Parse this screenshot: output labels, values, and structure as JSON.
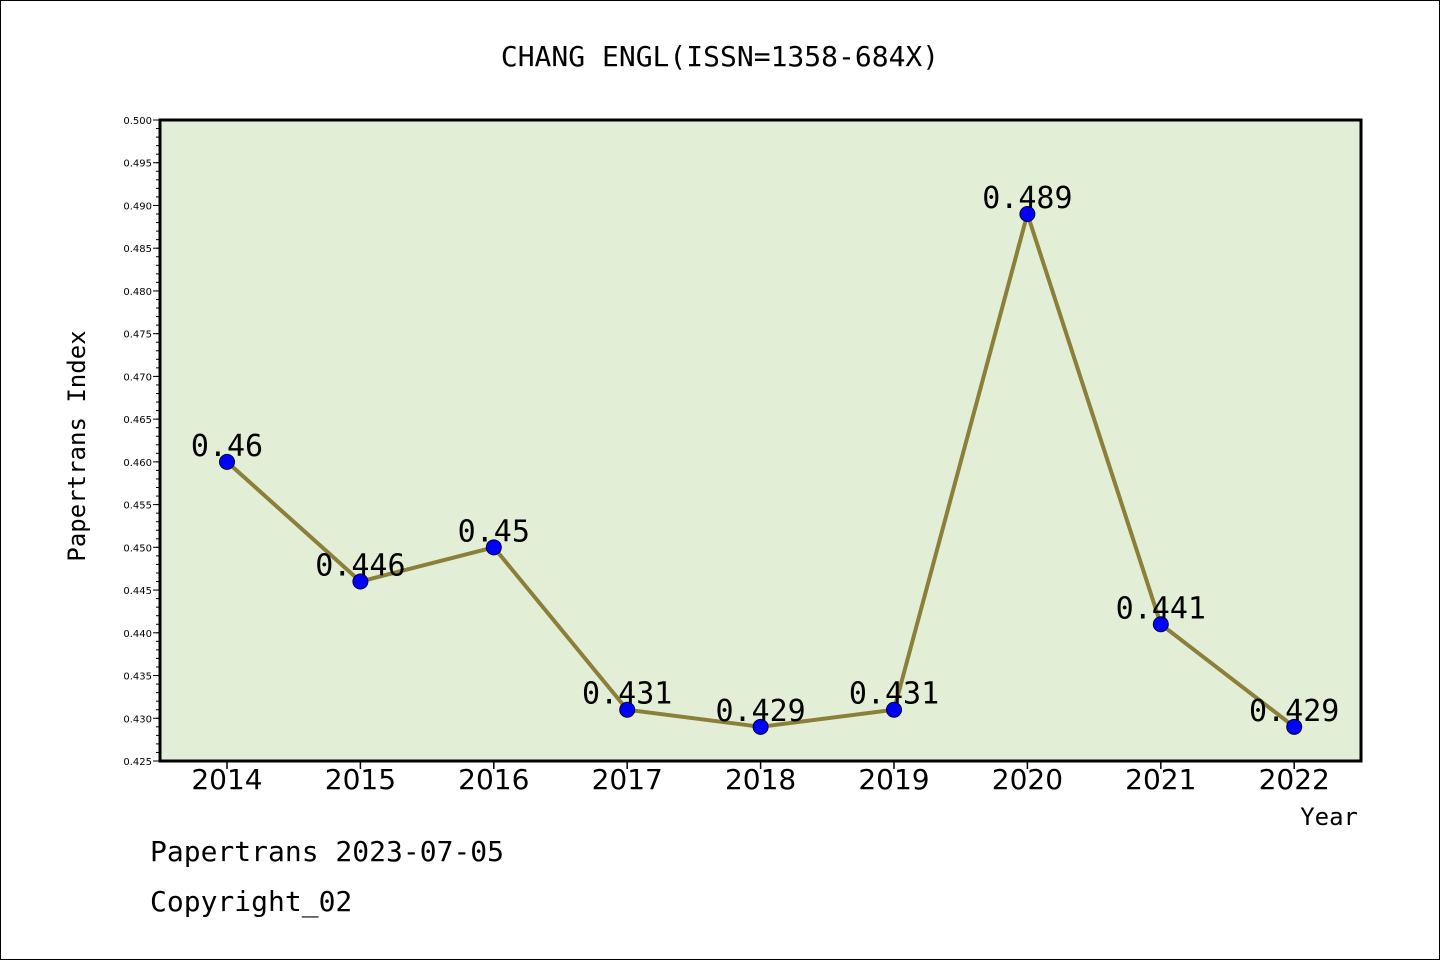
{
  "colors": {
    "plot_background": "#e2efd6",
    "line": "#8c7f3a",
    "marker_fill": "#0000ff",
    "marker_stroke": "#000033",
    "axis": "#000000"
  },
  "chart_data": {
    "type": "line",
    "title": "CHANG ENGL(ISSN=1358-684X)",
    "xlabel": "Year",
    "ylabel": "Papertrans Index",
    "categories": [
      "2014",
      "2015",
      "2016",
      "2017",
      "2018",
      "2019",
      "2020",
      "2021",
      "2022"
    ],
    "values": [
      0.46,
      0.446,
      0.45,
      0.431,
      0.429,
      0.431,
      0.489,
      0.441,
      0.429
    ],
    "value_labels": [
      "0.46",
      "0.446",
      "0.45",
      "0.431",
      "0.429",
      "0.431",
      "0.489",
      "0.441",
      "0.429"
    ],
    "ylim": [
      0.425,
      0.5
    ],
    "yticks": [
      "0.425",
      "0.430",
      "0.435",
      "0.440",
      "0.445",
      "0.450",
      "0.455",
      "0.460",
      "0.465",
      "0.470",
      "0.475",
      "0.480",
      "0.485",
      "0.490",
      "0.495",
      "0.500"
    ],
    "grid": false,
    "legend": "none"
  },
  "footer": {
    "line1": "Papertrans 2023-07-05",
    "line2": "Copyright_02"
  }
}
